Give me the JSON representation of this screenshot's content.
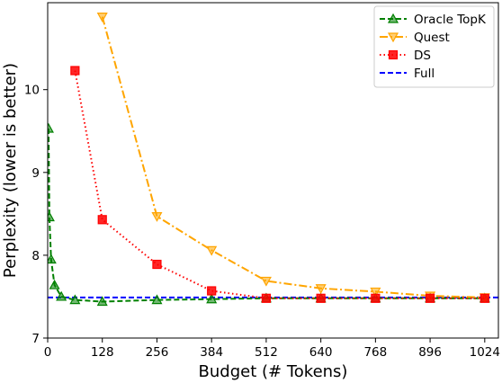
{
  "chart_data": {
    "type": "line",
    "xlabel": "Budget (# Tokens)",
    "ylabel": "Perplexity (lower is better)",
    "xlim": [
      0,
      1056
    ],
    "ylim": [
      7,
      11.05
    ],
    "xticks": [
      0,
      128,
      256,
      384,
      512,
      640,
      768,
      896,
      1024
    ],
    "yticks": [
      7,
      8,
      9,
      10
    ],
    "legend_position": "top-right",
    "grid": false,
    "series": [
      {
        "name": "Oracle TopK",
        "color": "#008000",
        "linestyle": "dashed",
        "marker": "triangle-up",
        "x": [
          2,
          4,
          8,
          16,
          32,
          64,
          128,
          256,
          384,
          512,
          640,
          768,
          896,
          1024
        ],
        "y": [
          9.53,
          8.46,
          7.95,
          7.64,
          7.5,
          7.46,
          7.44,
          7.46,
          7.47,
          7.48,
          7.48,
          7.48,
          7.48,
          7.48
        ]
      },
      {
        "name": "Quest",
        "color": "#FFA500",
        "linestyle": "dashdot",
        "marker": "triangle-down",
        "x": [
          128,
          256,
          384,
          512,
          640,
          768,
          896,
          1024
        ],
        "y": [
          10.88,
          8.47,
          8.06,
          7.69,
          7.6,
          7.56,
          7.51,
          7.49
        ]
      },
      {
        "name": "DS",
        "color": "#FF0000",
        "linestyle": "dotted",
        "marker": "square",
        "x": [
          64,
          128,
          256,
          384,
          512,
          640,
          768,
          896,
          1024
        ],
        "y": [
          10.23,
          8.43,
          7.89,
          7.57,
          7.48,
          7.48,
          7.48,
          7.48,
          7.48
        ]
      },
      {
        "name": "Full",
        "color": "#0000FF",
        "linestyle": "dashed",
        "marker": "none",
        "x": [
          0,
          1056
        ],
        "y": [
          7.49,
          7.49
        ]
      }
    ]
  }
}
